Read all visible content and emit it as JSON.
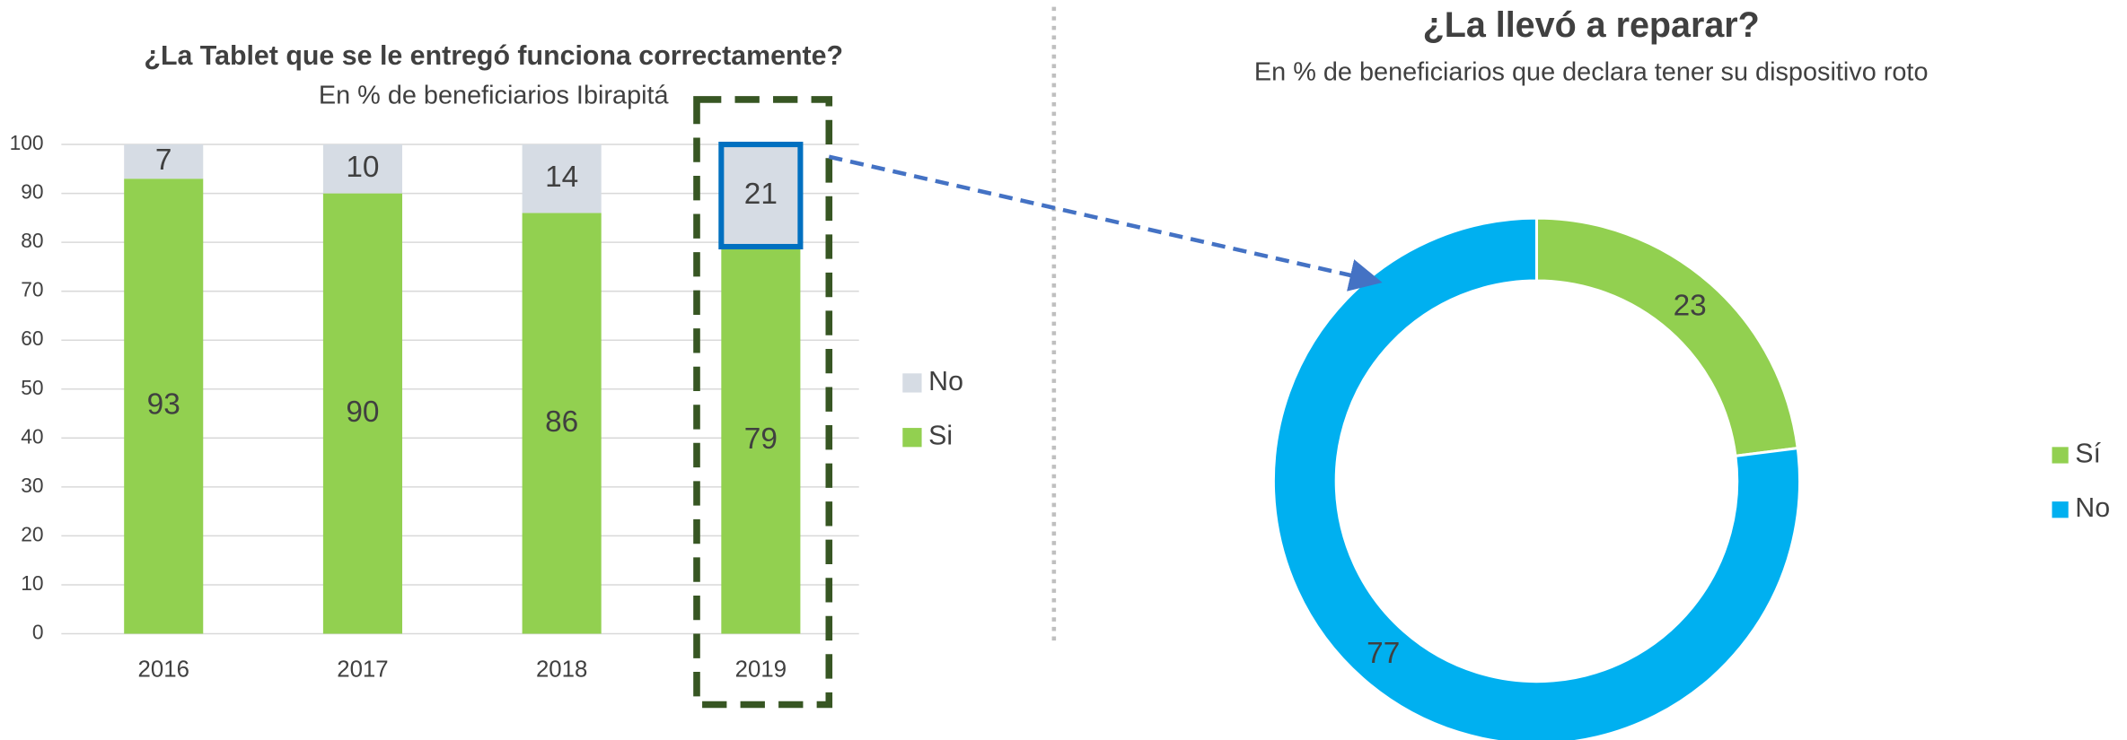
{
  "chart_data": [
    {
      "type": "bar",
      "stacked": true,
      "title": "¿La Tablet que se le entregó funciona correctamente?",
      "subtitle": "En % de beneficiarios Ibirapitá",
      "categories": [
        "2016",
        "2017",
        "2018",
        "2019"
      ],
      "series": [
        {
          "name": "Si",
          "color": "#92d050",
          "values": [
            93,
            90,
            86,
            79
          ]
        },
        {
          "name": "No",
          "color": "#d6dce4",
          "values": [
            7,
            10,
            14,
            21
          ]
        }
      ],
      "ylim": [
        0,
        100
      ],
      "yticks": [
        0,
        10,
        20,
        30,
        40,
        50,
        60,
        70,
        80,
        90,
        100
      ],
      "grid": true,
      "legend": "right"
    },
    {
      "type": "pie",
      "donut": true,
      "title": "¿La llevó a reparar?",
      "subtitle": "En % de beneficiarios que declara tener su dispositivo roto",
      "categories": [
        "Sí",
        "No"
      ],
      "values": [
        23,
        77
      ],
      "colors": [
        "#92d050",
        "#00b0f0"
      ],
      "legend": "right"
    }
  ]
}
